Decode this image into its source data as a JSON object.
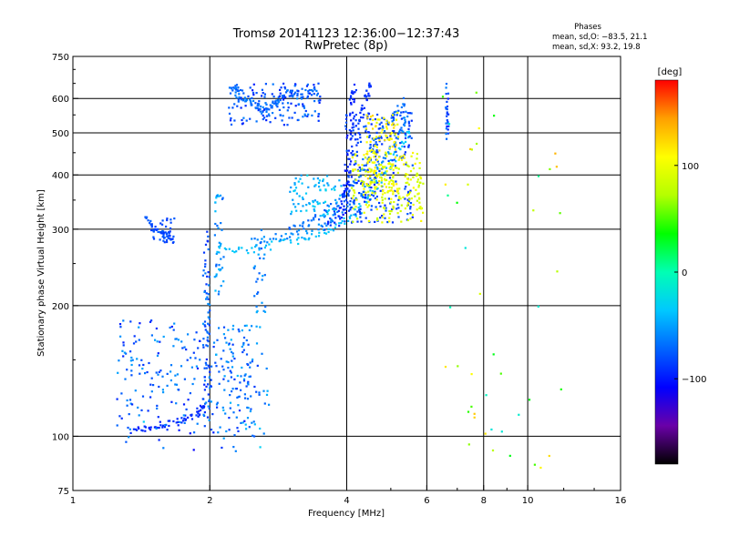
{
  "chart_data": {
    "type": "scatter",
    "title": "Tromsø 20141123 12:36:00−12:37:43",
    "subtitle": "RwPretec (8p)",
    "phase_box": {
      "title": "Phases",
      "line1": "mean, sd,O: −83.5, 21.1",
      "line2": "mean, sd,X:  93.2, 19.8"
    },
    "xlabel": "Frequency [MHz]",
    "ylabel": "Stationary phase Virtual Height [km]",
    "x_scale": "log",
    "y_scale": "log",
    "xlim": [
      1,
      16
    ],
    "ylim": [
      75,
      750
    ],
    "x_ticks": [
      {
        "value": 1,
        "label": "1"
      },
      {
        "value": 2,
        "label": "2"
      },
      {
        "value": 4,
        "label": "4"
      },
      {
        "value": 6,
        "label": "6"
      },
      {
        "value": 8,
        "label": "8"
      },
      {
        "value": 10,
        "label": "10"
      },
      {
        "value": 16,
        "label": "16"
      }
    ],
    "x_grid": [
      2,
      4,
      6,
      8,
      10
    ],
    "y_ticks": [
      {
        "value": 75,
        "label": "75"
      },
      {
        "value": 100,
        "label": "100"
      },
      {
        "value": 200,
        "label": "200"
      },
      {
        "value": 300,
        "label": "300"
      },
      {
        "value": 400,
        "label": "400"
      },
      {
        "value": 500,
        "label": "500"
      },
      {
        "value": 600,
        "label": "600"
      },
      {
        "value": 750,
        "label": "750"
      }
    ],
    "y_grid": [
      100,
      200,
      300,
      400,
      500,
      600
    ],
    "grid": true,
    "colorbar": {
      "label": "[deg]",
      "range": [
        -180,
        180
      ],
      "ticks": [
        {
          "value": 100,
          "label": "100"
        },
        {
          "value": 0,
          "label": "0"
        },
        {
          "value": -100,
          "label": "−100"
        }
      ],
      "colors": [
        "#000000",
        "#6a00a8",
        "#0000ff",
        "#0064ff",
        "#00c8ff",
        "#00ffb4",
        "#00ff00",
        "#b4ff00",
        "#ffff00",
        "#ffa000",
        "#ff0000"
      ]
    },
    "traces": [
      {
        "type": "curve",
        "phase": -95,
        "spread": 6,
        "points": [
          [
            1.35,
            103
          ],
          [
            1.5,
            105
          ],
          [
            1.7,
            108
          ],
          [
            1.85,
            112
          ],
          [
            1.95,
            118
          ]
        ]
      },
      {
        "type": "cloud",
        "phase": -75,
        "spread": 25,
        "f": [
          1.25,
          2.05
        ],
        "h": [
          102,
          185
        ],
        "n": 160
      },
      {
        "type": "cloud",
        "phase": -65,
        "spread": 25,
        "f": [
          2.05,
          2.7
        ],
        "h": [
          100,
          180
        ],
        "n": 140
      },
      {
        "type": "vband",
        "phase": -75,
        "spread": 18,
        "f": [
          1.93,
          2.0
        ],
        "h": [
          110,
          300
        ],
        "n": 70
      },
      {
        "type": "vband",
        "phase": -55,
        "spread": 18,
        "f": [
          2.05,
          2.15
        ],
        "h": [
          210,
          360
        ],
        "n": 40
      },
      {
        "type": "vband",
        "phase": -60,
        "spread": 18,
        "f": [
          2.5,
          2.65
        ],
        "h": [
          190,
          300
        ],
        "n": 30
      },
      {
        "type": "curve",
        "phase": -80,
        "spread": 8,
        "points": [
          [
            1.45,
            318
          ],
          [
            1.52,
            300
          ],
          [
            1.6,
            292
          ],
          [
            1.68,
            283
          ]
        ]
      },
      {
        "type": "cloud",
        "phase": -85,
        "spread": 10,
        "f": [
          1.5,
          1.68
        ],
        "h": [
          278,
          318
        ],
        "n": 25
      },
      {
        "type": "curve",
        "phase": -40,
        "spread": 8,
        "points": [
          [
            2.1,
            268
          ],
          [
            2.5,
            270
          ],
          [
            3.0,
            280
          ],
          [
            3.5,
            295
          ],
          [
            4.0,
            312
          ],
          [
            4.4,
            345
          ],
          [
            4.8,
            395
          ],
          [
            5.2,
            455
          ],
          [
            5.5,
            510
          ]
        ]
      },
      {
        "type": "curve",
        "phase": -60,
        "spread": 8,
        "points": [
          [
            2.5,
            282
          ],
          [
            3.0,
            290
          ],
          [
            3.5,
            306
          ],
          [
            4.0,
            330
          ],
          [
            4.4,
            370
          ],
          [
            4.8,
            430
          ],
          [
            5.2,
            495
          ],
          [
            5.5,
            560
          ]
        ]
      },
      {
        "type": "curve",
        "phase": -70,
        "spread": 8,
        "points": [
          [
            3.0,
            300
          ],
          [
            3.5,
            322
          ],
          [
            4.0,
            360
          ],
          [
            4.3,
            410
          ],
          [
            4.6,
            470
          ],
          [
            5.0,
            540
          ],
          [
            5.4,
            600
          ]
        ]
      },
      {
        "type": "curve",
        "phase": -90,
        "spread": 8,
        "points": [
          [
            3.6,
            300
          ],
          [
            3.9,
            340
          ],
          [
            4.1,
            420
          ],
          [
            4.25,
            520
          ],
          [
            4.4,
            600
          ],
          [
            4.5,
            650
          ]
        ]
      },
      {
        "type": "curve",
        "phase": -95,
        "spread": 8,
        "points": [
          [
            3.9,
            310
          ],
          [
            4.0,
            380
          ],
          [
            4.05,
            480
          ],
          [
            4.1,
            580
          ],
          [
            4.15,
            645
          ]
        ]
      },
      {
        "type": "cloud",
        "phase": -85,
        "spread": 10,
        "f": [
          3.95,
          5.6
        ],
        "h": [
          310,
          560
        ],
        "n": 240
      },
      {
        "type": "cloud",
        "phase": -40,
        "spread": 15,
        "f": [
          3.0,
          3.9
        ],
        "h": [
          320,
          400
        ],
        "n": 80
      },
      {
        "type": "cloud",
        "phase": 110,
        "spread": 15,
        "f": [
          4.4,
          5.2
        ],
        "h": [
          360,
          560
        ],
        "n": 130
      },
      {
        "type": "cloud",
        "phase": 95,
        "spread": 18,
        "f": [
          4.1,
          5.9
        ],
        "h": [
          310,
          450
        ],
        "n": 200
      },
      {
        "type": "curve",
        "phase": -70,
        "spread": 10,
        "points": [
          [
            2.25,
            640
          ],
          [
            2.35,
            610
          ],
          [
            2.5,
            580
          ],
          [
            2.65,
            560
          ],
          [
            2.8,
            590
          ],
          [
            3.0,
            620
          ],
          [
            3.2,
            610
          ],
          [
            3.45,
            630
          ]
        ]
      },
      {
        "type": "cloud",
        "phase": -80,
        "spread": 18,
        "f": [
          2.2,
          3.5
        ],
        "h": [
          520,
          650
        ],
        "n": 140
      },
      {
        "type": "vband",
        "phase": -80,
        "spread": 20,
        "f": [
          6.6,
          6.7
        ],
        "h": [
          480,
          650
        ],
        "n": 25
      },
      {
        "type": "cloud",
        "phase": 60,
        "spread": 80,
        "f": [
          6.5,
          12.0
        ],
        "h": [
          82,
          640
        ],
        "n": 45
      },
      {
        "type": "cloud",
        "phase": -70,
        "spread": 40,
        "f": [
          1.3,
          2.6
        ],
        "h": [
          92,
          110
        ],
        "n": 20
      }
    ]
  }
}
